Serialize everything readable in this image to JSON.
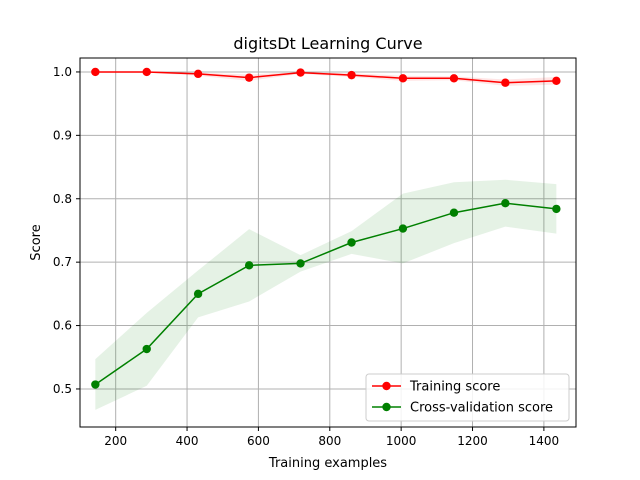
{
  "chart_data": {
    "type": "line",
    "title": "digitsDt Learning Curve",
    "xlabel": "Training examples",
    "ylabel": "Score",
    "xlim": [
      100,
      1490
    ],
    "ylim": [
      0.44,
      1.022
    ],
    "xticks": [
      200,
      400,
      600,
      800,
      1000,
      1200,
      1400
    ],
    "yticks": [
      0.5,
      0.6,
      0.7,
      0.8,
      0.9,
      1.0
    ],
    "ytick_labels": [
      "0.5",
      "0.6",
      "0.7",
      "0.8",
      "0.9",
      "1.0"
    ],
    "grid": true,
    "legend_position": "lower-right",
    "x": [
      143,
      287,
      431,
      574,
      718,
      861,
      1005,
      1148,
      1292,
      1435
    ],
    "series": [
      {
        "name": "Training score",
        "color": "#ff0000",
        "values": [
          1.0,
          1.0,
          0.997,
          0.991,
          0.999,
          0.995,
          0.99,
          0.99,
          0.983,
          0.986
        ],
        "band_lower": [
          0.999,
          0.999,
          0.994,
          0.986,
          0.997,
          0.992,
          0.986,
          0.987,
          0.978,
          0.98
        ],
        "band_upper": [
          1.0,
          1.0,
          0.999,
          0.996,
          1.0,
          0.998,
          0.994,
          0.993,
          0.988,
          0.992
        ]
      },
      {
        "name": "Cross-validation score",
        "color": "#008000",
        "values": [
          0.507,
          0.563,
          0.65,
          0.695,
          0.698,
          0.731,
          0.753,
          0.778,
          0.793,
          0.784
        ],
        "band_lower": [
          0.467,
          0.505,
          0.613,
          0.638,
          0.685,
          0.713,
          0.698,
          0.73,
          0.756,
          0.745
        ],
        "band_upper": [
          0.547,
          0.62,
          0.687,
          0.752,
          0.711,
          0.749,
          0.808,
          0.826,
          0.83,
          0.823
        ]
      }
    ]
  }
}
